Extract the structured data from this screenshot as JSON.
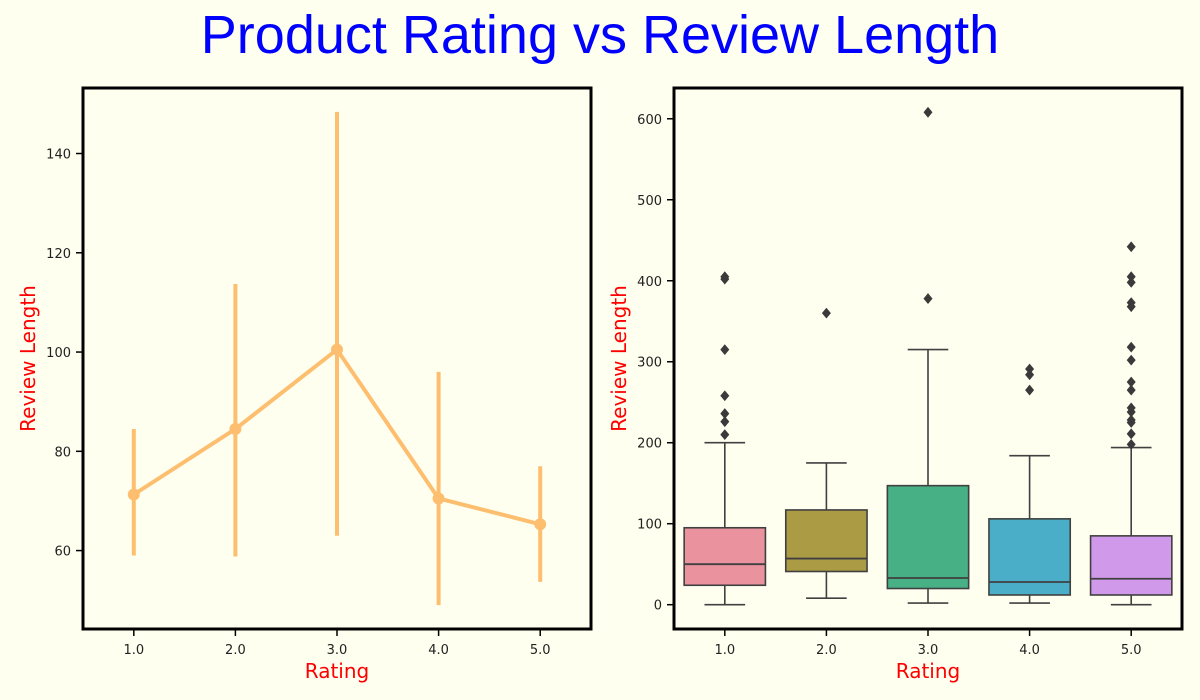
{
  "title": "Product Rating vs Review Length",
  "colors": {
    "background": "#fffff0",
    "title": "#0000ff",
    "axis_label": "#ff0000",
    "point_line": "#fdbf6f",
    "box_fills": [
      "#ea939e",
      "#ab9b45",
      "#47b185",
      "#4aaec8",
      "#d099ea"
    ],
    "box_edge": "#404040"
  },
  "chart_data": [
    {
      "type": "line",
      "subtype": "pointplot",
      "xlabel": "Rating",
      "ylabel": "Review Length",
      "categories": [
        "1.0",
        "2.0",
        "3.0",
        "4.0",
        "5.0"
      ],
      "values": [
        71.3,
        84.5,
        100.5,
        70.5,
        65.3
      ],
      "ci_low": [
        59,
        58.8,
        63,
        49,
        53.7
      ],
      "ci_high": [
        84.5,
        113.7,
        148.4,
        96,
        77
      ],
      "ylim": [
        44.2,
        153.2
      ],
      "yticks": [
        60,
        80,
        100,
        120,
        140
      ],
      "grid": false
    },
    {
      "type": "box",
      "xlabel": "Rating",
      "ylabel": "Review Length",
      "categories": [
        "1.0",
        "2.0",
        "3.0",
        "4.0",
        "5.0"
      ],
      "boxes": [
        {
          "whislo": 0,
          "q1": 24,
          "med": 50,
          "q3": 95,
          "whishi": 200,
          "fliers": [
            210,
            226,
            236,
            258,
            315,
            402,
            405
          ]
        },
        {
          "whislo": 8,
          "q1": 41,
          "med": 57,
          "q3": 117,
          "whishi": 175,
          "fliers": [
            360
          ]
        },
        {
          "whislo": 2,
          "q1": 20,
          "med": 33,
          "q3": 147,
          "whishi": 315,
          "fliers": [
            378,
            608
          ]
        },
        {
          "whislo": 2,
          "q1": 12,
          "med": 28,
          "q3": 106,
          "whishi": 184,
          "fliers": [
            265,
            284,
            291
          ]
        },
        {
          "whislo": 0,
          "q1": 12,
          "med": 32,
          "q3": 85,
          "whishi": 194,
          "fliers": [
            198,
            211,
            225,
            228,
            238,
            243,
            265,
            275,
            302,
            318,
            368,
            373,
            398,
            405,
            442
          ]
        }
      ],
      "ylim": [
        -30,
        638
      ],
      "yticks": [
        0,
        100,
        200,
        300,
        400,
        500,
        600
      ],
      "grid": false
    }
  ]
}
